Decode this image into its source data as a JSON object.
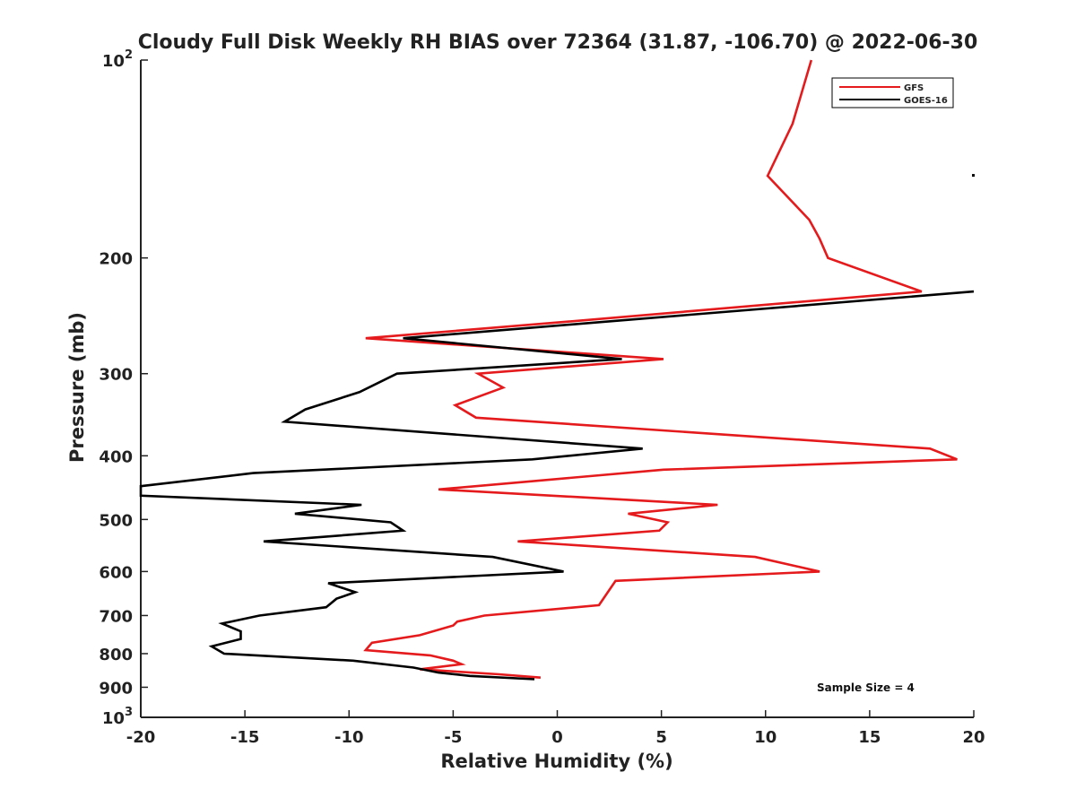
{
  "chart_data": {
    "type": "line",
    "title": "Cloudy Full Disk Weekly RH BIAS over 72364 (31.87, -106.70) @ 2022-06-30",
    "xlabel": "Relative Humidity (%)",
    "ylabel": "Pressure (mb)",
    "xlim": [
      -20,
      20
    ],
    "ylim": [
      100,
      1000
    ],
    "yscale": "log",
    "y_reversed": true,
    "grid": false,
    "legend_position": "top-right",
    "annotation": "Sample Size = 4",
    "x_ticks": [
      -20,
      -15,
      -10,
      -5,
      0,
      5,
      10,
      15,
      20
    ],
    "x_tick_labels": [
      "-20",
      "-15",
      "-10",
      "-5",
      "0",
      "5",
      "10",
      "15",
      "20"
    ],
    "y_ticks": [
      {
        "value": 100,
        "base": "10",
        "exp": "2"
      },
      {
        "value": 200,
        "label": "200"
      },
      {
        "value": 300,
        "label": "300"
      },
      {
        "value": 400,
        "label": "400"
      },
      {
        "value": 500,
        "label": "500"
      },
      {
        "value": 600,
        "label": "600"
      },
      {
        "value": 700,
        "label": "700"
      },
      {
        "value": 800,
        "label": "800"
      },
      {
        "value": 900,
        "label": "900"
      },
      {
        "value": 1000,
        "base": "10",
        "exp": "3"
      }
    ],
    "series": [
      {
        "name": "GFS",
        "color": "#e41a1c",
        "points": [
          [
            12.2,
            100
          ],
          [
            11.3,
            125
          ],
          [
            10.1,
            150
          ],
          [
            12.1,
            175
          ],
          [
            12.6,
            187
          ],
          [
            13.0,
            200
          ],
          [
            17.5,
            225
          ],
          [
            0.5,
            250
          ],
          [
            -9.2,
            265
          ],
          [
            5.1,
            285
          ],
          [
            -3.8,
            300
          ],
          [
            -2.6,
            315
          ],
          [
            -4.9,
            335
          ],
          [
            -3.9,
            350
          ],
          [
            17.9,
            390
          ],
          [
            19.2,
            405
          ],
          [
            5.1,
            420
          ],
          [
            -5.7,
            450
          ],
          [
            7.7,
            475
          ],
          [
            3.4,
            490
          ],
          [
            5.3,
            505
          ],
          [
            4.9,
            520
          ],
          [
            -1.9,
            540
          ],
          [
            9.5,
            570
          ],
          [
            12.6,
            600
          ],
          [
            2.8,
            620
          ],
          [
            2.0,
            675
          ],
          [
            -3.5,
            700
          ],
          [
            -4.8,
            715
          ],
          [
            -5.0,
            725
          ],
          [
            -6.6,
            750
          ],
          [
            -8.9,
            770
          ],
          [
            -9.2,
            790
          ],
          [
            -6.1,
            805
          ],
          [
            -5.0,
            820
          ],
          [
            -4.6,
            830
          ],
          [
            -6.6,
            845
          ],
          [
            -2.8,
            860
          ],
          [
            -0.8,
            870
          ]
        ]
      },
      {
        "name": "GOES-16",
        "color": "#000000",
        "points": [
          [
            20.0,
            225
          ],
          [
            -7.4,
            265
          ],
          [
            3.1,
            285
          ],
          [
            -7.7,
            300
          ],
          [
            -9.5,
            320
          ],
          [
            -12.1,
            340
          ],
          [
            -13.1,
            355
          ],
          [
            4.1,
            390
          ],
          [
            -1.2,
            405
          ],
          [
            -14.6,
            425
          ],
          [
            -20.0,
            445
          ],
          [
            -20.0,
            460
          ],
          [
            -9.4,
            475
          ],
          [
            -12.6,
            490
          ],
          [
            -8.0,
            505
          ],
          [
            -7.4,
            520
          ],
          [
            -14.1,
            540
          ],
          [
            -3.1,
            570
          ],
          [
            0.3,
            600
          ],
          [
            -11.0,
            625
          ],
          [
            -9.7,
            645
          ],
          [
            -10.6,
            660
          ],
          [
            -11.1,
            680
          ],
          [
            -14.3,
            700
          ],
          [
            -16.1,
            720
          ],
          [
            -15.2,
            740
          ],
          [
            -15.2,
            760
          ],
          [
            -16.6,
            780
          ],
          [
            -16.0,
            800
          ],
          [
            -9.8,
            820
          ],
          [
            -6.9,
            840
          ],
          [
            -5.7,
            855
          ],
          [
            -4.2,
            865
          ],
          [
            -1.1,
            875
          ]
        ]
      }
    ],
    "extra_marks": [
      {
        "name": "isolated-goes-16-point",
        "x": 20.0,
        "y": 150,
        "color": "#000000"
      }
    ]
  }
}
